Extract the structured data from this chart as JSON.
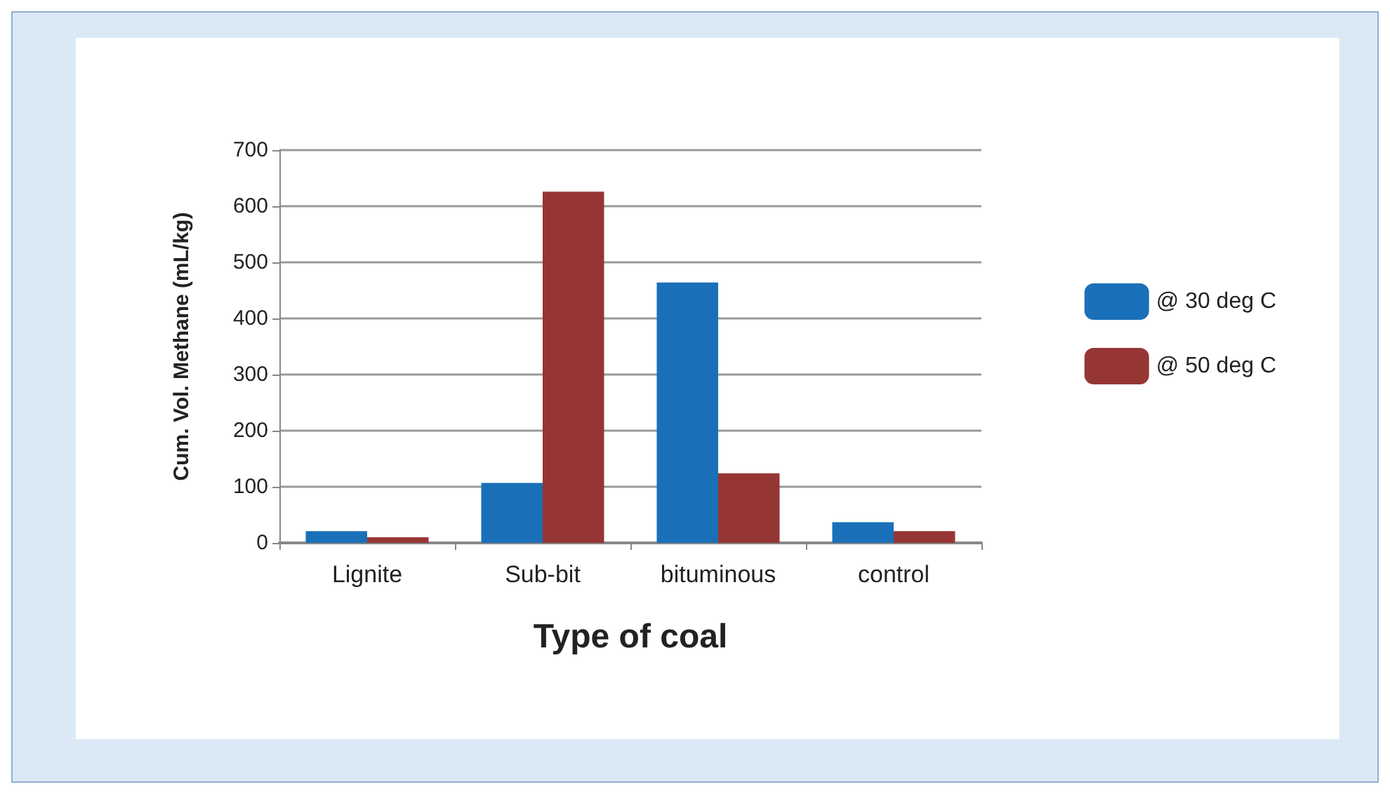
{
  "chart_data": {
    "type": "bar",
    "xlabel": "Type of coal",
    "ylabel": "Cum. Vol. Methane (mL/kg)",
    "categories": [
      "Lignite",
      "Sub-bit",
      "bituminous",
      "control"
    ],
    "series": [
      {
        "name": "@ 30 deg C",
        "color": "#1a70b8",
        "values": [
          21,
          107,
          464,
          37
        ]
      },
      {
        "name": "@ 50 deg C",
        "color": "#963634",
        "values": [
          10,
          626,
          124,
          21
        ]
      }
    ],
    "ylim": [
      0,
      700
    ],
    "yticks": [
      0,
      100,
      200,
      300,
      400,
      500,
      600,
      700
    ],
    "grid": "y",
    "legend": "right"
  }
}
